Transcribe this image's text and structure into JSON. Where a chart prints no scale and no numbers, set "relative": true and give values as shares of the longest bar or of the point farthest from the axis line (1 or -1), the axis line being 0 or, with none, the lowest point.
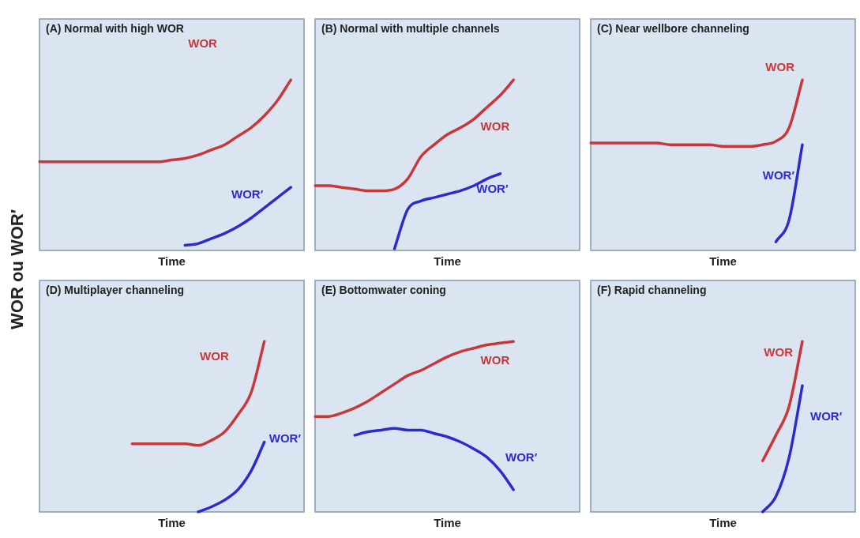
{
  "chart_data": [
    {
      "type": "line",
      "title": "(A) Normal with high WOR",
      "xlabel": "Time",
      "ylabel": "WOR ou WOR′",
      "relative": true,
      "tick_labels": false,
      "legend": false,
      "marker": "none",
      "categories": [
        null,
        null,
        null,
        null,
        null,
        null,
        null,
        null,
        null,
        null,
        null,
        null,
        null,
        null,
        null,
        null,
        null,
        null,
        null,
        null,
        null
      ],
      "series": [
        {
          "name": "WOR",
          "color": "#c8373a",
          "values": [
            0.52,
            0.52,
            0.52,
            0.52,
            0.52,
            0.52,
            0.52,
            0.52,
            0.52,
            0.52,
            0.53,
            0.54,
            0.56,
            0.59,
            0.62,
            0.67,
            0.72,
            0.79,
            0.88,
            1.0,
            null
          ]
        },
        {
          "name": "WOR′",
          "color": "#2b2bd0",
          "values": [
            null,
            null,
            null,
            null,
            null,
            null,
            null,
            null,
            null,
            null,
            null,
            0.03,
            0.04,
            0.07,
            0.1,
            0.14,
            0.19,
            0.25,
            0.31,
            0.37,
            null
          ]
        }
      ]
    },
    {
      "type": "line",
      "title": "(B) Normal with multiple channels",
      "xlabel": "Time",
      "relative": true,
      "tick_labels": false,
      "legend": false,
      "marker": "none",
      "categories": [
        null,
        null,
        null,
        null,
        null,
        null,
        null,
        null,
        null,
        null,
        null,
        null,
        null,
        null,
        null,
        null,
        null,
        null,
        null,
        null,
        null
      ],
      "series": [
        {
          "name": "WOR",
          "color": "#c8373a",
          "values": [
            0.38,
            0.38,
            0.37,
            0.36,
            0.35,
            0.35,
            0.36,
            0.42,
            0.55,
            0.62,
            0.68,
            0.72,
            0.77,
            0.84,
            0.91,
            1.0,
            null,
            null,
            null,
            null,
            null
          ]
        },
        {
          "name": "WOR′",
          "color": "#2b2bd0",
          "values": [
            null,
            null,
            null,
            null,
            null,
            null,
            0.01,
            0.24,
            0.29,
            0.31,
            0.33,
            0.35,
            0.38,
            0.42,
            0.45,
            null,
            null,
            null,
            null,
            null,
            null
          ]
        }
      ]
    },
    {
      "type": "line",
      "title": "(C) Near wellbore channeling",
      "xlabel": "Time",
      "relative": true,
      "tick_labels": false,
      "legend": false,
      "marker": "none",
      "categories": [
        null,
        null,
        null,
        null,
        null,
        null,
        null,
        null,
        null,
        null,
        null,
        null,
        null,
        null,
        null,
        null,
        null,
        null,
        null,
        null,
        null
      ],
      "series": [
        {
          "name": "WOR",
          "color": "#c8373a",
          "values": [
            0.63,
            0.63,
            0.63,
            0.63,
            0.63,
            0.63,
            0.62,
            0.62,
            0.62,
            0.62,
            0.61,
            0.61,
            0.61,
            0.62,
            0.64,
            0.72,
            1.0,
            null,
            null,
            null,
            null
          ]
        },
        {
          "name": "WOR′",
          "color": "#2b2bd0",
          "values": [
            null,
            null,
            null,
            null,
            null,
            null,
            null,
            null,
            null,
            null,
            null,
            null,
            null,
            null,
            0.05,
            0.18,
            0.62,
            null,
            null,
            null,
            null
          ]
        }
      ]
    },
    {
      "type": "line",
      "title": "(D) Multiplayer channeling",
      "xlabel": "Time",
      "relative": true,
      "tick_labels": false,
      "legend": false,
      "marker": "none",
      "categories": [
        null,
        null,
        null,
        null,
        null,
        null,
        null,
        null,
        null,
        null,
        null,
        null,
        null,
        null,
        null,
        null,
        null,
        null,
        null,
        null,
        null
      ],
      "series": [
        {
          "name": "WOR",
          "color": "#c8373a",
          "values": [
            null,
            null,
            null,
            null,
            null,
            null,
            null,
            0.4,
            0.4,
            0.4,
            0.4,
            0.4,
            0.39,
            0.42,
            0.47,
            0.57,
            0.7,
            1.0,
            null,
            null,
            null
          ]
        },
        {
          "name": "WOR′",
          "color": "#2b2bd0",
          "values": [
            null,
            null,
            null,
            null,
            null,
            null,
            null,
            null,
            null,
            null,
            null,
            null,
            0,
            0.03,
            0.07,
            0.13,
            0.24,
            0.41,
            null,
            null,
            null
          ]
        }
      ]
    },
    {
      "type": "line",
      "title": "(E) Bottomwater coning",
      "xlabel": "Time",
      "relative": true,
      "tick_labels": false,
      "legend": false,
      "marker": "none",
      "categories": [
        null,
        null,
        null,
        null,
        null,
        null,
        null,
        null,
        null,
        null,
        null,
        null,
        null,
        null,
        null,
        null,
        null,
        null,
        null,
        null,
        null
      ],
      "series": [
        {
          "name": "WOR",
          "color": "#c8373a",
          "values": [
            0.56,
            0.56,
            0.58,
            0.61,
            0.65,
            0.7,
            0.75,
            0.8,
            0.83,
            0.87,
            0.91,
            0.94,
            0.96,
            0.98,
            0.99,
            1.0,
            null,
            null,
            null,
            null,
            null
          ]
        },
        {
          "name": "WOR′",
          "color": "#2b2bd0",
          "values": [
            null,
            null,
            null,
            0.45,
            0.47,
            0.48,
            0.49,
            0.48,
            0.48,
            0.46,
            0.44,
            0.41,
            0.37,
            0.32,
            0.24,
            0.13,
            null,
            null,
            null,
            null,
            null
          ]
        }
      ]
    },
    {
      "type": "line",
      "title": "(F) Rapid channeling",
      "xlabel": "Time",
      "relative": true,
      "tick_labels": false,
      "legend": false,
      "marker": "none",
      "categories": [
        null,
        null,
        null,
        null,
        null,
        null,
        null,
        null,
        null,
        null,
        null,
        null,
        null,
        null,
        null,
        null,
        null,
        null,
        null,
        null,
        null
      ],
      "series": [
        {
          "name": "WOR",
          "color": "#c8373a",
          "values": [
            null,
            null,
            null,
            null,
            null,
            null,
            null,
            null,
            null,
            null,
            null,
            null,
            null,
            0.3,
            0.45,
            0.62,
            1.0,
            null,
            null,
            null,
            null
          ]
        },
        {
          "name": "WOR′",
          "color": "#2b2bd0",
          "values": [
            null,
            null,
            null,
            null,
            null,
            null,
            null,
            null,
            null,
            null,
            null,
            null,
            null,
            0,
            0.09,
            0.32,
            0.74,
            null,
            null,
            null,
            null
          ]
        }
      ]
    }
  ]
}
